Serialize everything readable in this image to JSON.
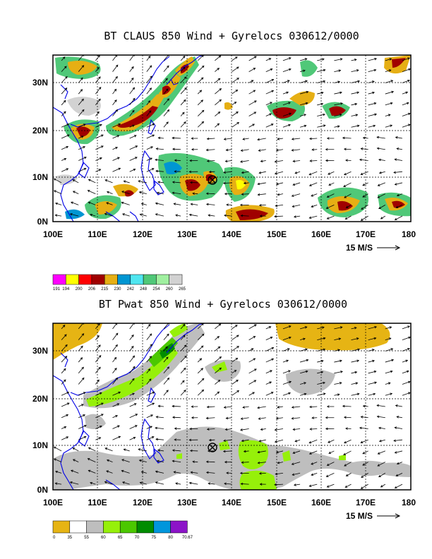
{
  "panels": [
    {
      "title": "BT CLAUS 850 Wind + Gyrelocs 030612/0000",
      "lat_labels": [
        "30N",
        "20N",
        "10N",
        "0N"
      ],
      "lon_labels": [
        "100E",
        "110E",
        "120E",
        "130E",
        "140E",
        "150E",
        "160E",
        "170E",
        "180"
      ],
      "vector_key": "15 M/S",
      "legend": {
        "colors": [
          "#ff00ff",
          "#ffff00",
          "#ff0000",
          "#a00000",
          "#e6af14",
          "#0096d2",
          "#50e6f0",
          "#50c878",
          "#a0f0a0",
          "#d2d2d2"
        ],
        "labels": [
          "191",
          "194",
          "200",
          "206",
          "215",
          "230",
          "242",
          "248",
          "254",
          "260",
          "265"
        ]
      }
    },
    {
      "title": "BT Pwat 850 Wind + Gyrelocs 030612/0000",
      "lat_labels": [
        "30N",
        "20N",
        "10N",
        "0N"
      ],
      "lon_labels": [
        "100E",
        "110E",
        "120E",
        "130E",
        "140E",
        "150E",
        "160E",
        "170E",
        "180"
      ],
      "vector_key": "15 M/S",
      "legend": {
        "colors": [
          "#e6b414",
          "#ffffff",
          "#bebebe",
          "#96f00a",
          "#4bc800",
          "#008c00",
          "#0096dc",
          "#8c14c8"
        ],
        "labels": [
          "0",
          "35",
          "55",
          "60",
          "65",
          "70",
          "75",
          "80",
          "70.67"
        ]
      }
    }
  ],
  "gyre_marker": {
    "lon": 136,
    "lat": 9
  }
}
